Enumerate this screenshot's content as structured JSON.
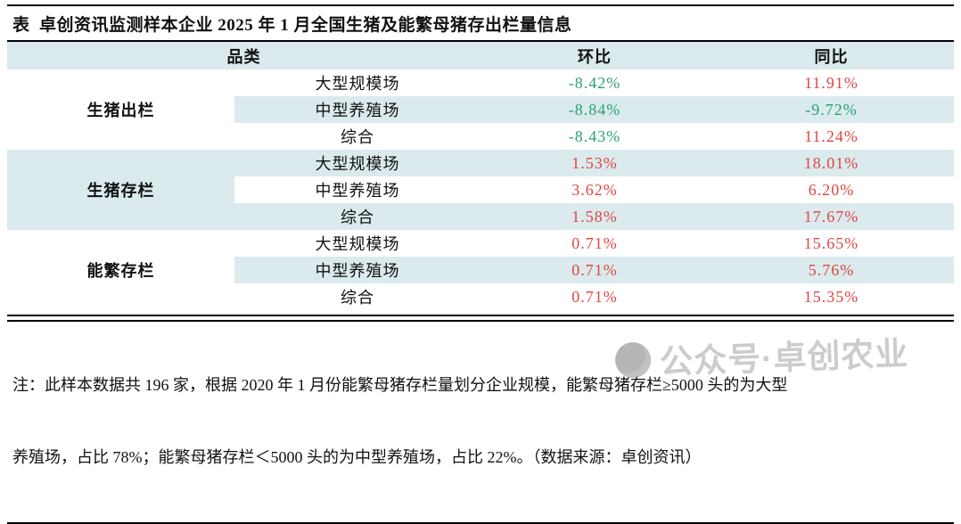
{
  "title": "表  卓创资讯监测样本企业 2025 年 1 月全国生猪及能繁母猪存出栏量信息",
  "table": {
    "header": {
      "category": "品类",
      "mom": "环比",
      "yoy": "同比"
    },
    "groups": [
      {
        "name": "生猪出栏",
        "rows": [
          {
            "type": "大型规模场",
            "mom": "-8.42%",
            "mom_color": "green",
            "yoy": "11.91%",
            "yoy_color": "red"
          },
          {
            "type": "中型养殖场",
            "mom": "-8.84%",
            "mom_color": "green",
            "yoy": "-9.72%",
            "yoy_color": "green"
          },
          {
            "type": "综合",
            "mom": "-8.43%",
            "mom_color": "green",
            "yoy": "11.24%",
            "yoy_color": "red"
          }
        ]
      },
      {
        "name": "生猪存栏",
        "rows": [
          {
            "type": "大型规模场",
            "mom": "1.53%",
            "mom_color": "red",
            "yoy": "18.01%",
            "yoy_color": "red"
          },
          {
            "type": "中型养殖场",
            "mom": "3.62%",
            "mom_color": "red",
            "yoy": "6.20%",
            "yoy_color": "red"
          },
          {
            "type": "综合",
            "mom": "1.58%",
            "mom_color": "red",
            "yoy": "17.67%",
            "yoy_color": "red"
          }
        ]
      },
      {
        "name": "能繁存栏",
        "rows": [
          {
            "type": "大型规模场",
            "mom": "0.71%",
            "mom_color": "red",
            "yoy": "15.65%",
            "yoy_color": "red"
          },
          {
            "type": "中型养殖场",
            "mom": "0.71%",
            "mom_color": "red",
            "yoy": "5.76%",
            "yoy_color": "red"
          },
          {
            "type": "综合",
            "mom": "0.71%",
            "mom_color": "red",
            "yoy": "15.35%",
            "yoy_color": "red"
          }
        ]
      }
    ]
  },
  "note": {
    "line1": "注：此样本数据共 196 家，根据 2020 年 1 月份能繁母猪存栏量划分企业规模，能繁母猪存栏≥5000 头的为大型",
    "line2": "养殖场，占比 78%；能繁母猪存栏＜5000 头的为中型养殖场，占比 22%。（数据来源：卓创资讯）"
  },
  "watermark": {
    "text": "公众号·卓创农业"
  },
  "colors": {
    "green": "#28a273",
    "red": "#e04642",
    "row_highlight": "#daeaed"
  },
  "chart_data": {
    "type": "table",
    "title": "表 卓创资讯监测样本企业 2025 年 1 月全国生猪及能繁母猪存出栏量信息",
    "columns": [
      "品类",
      "",
      "环比",
      "同比"
    ],
    "rows": [
      [
        "生猪出栏",
        "大型规模场",
        "-8.42%",
        "11.91%"
      ],
      [
        "生猪出栏",
        "中型养殖场",
        "-8.84%",
        "-9.72%"
      ],
      [
        "生猪出栏",
        "综合",
        "-8.43%",
        "11.24%"
      ],
      [
        "生猪存栏",
        "大型规模场",
        "1.53%",
        "18.01%"
      ],
      [
        "生猪存栏",
        "中型养殖场",
        "3.62%",
        "6.20%"
      ],
      [
        "生猪存栏",
        "综合",
        "1.58%",
        "17.67%"
      ],
      [
        "能繁存栏",
        "大型规模场",
        "0.71%",
        "15.65%"
      ],
      [
        "能繁存栏",
        "中型养殖场",
        "0.71%",
        "5.76%"
      ],
      [
        "能繁存栏",
        "综合",
        "0.71%",
        "15.35%"
      ]
    ]
  }
}
